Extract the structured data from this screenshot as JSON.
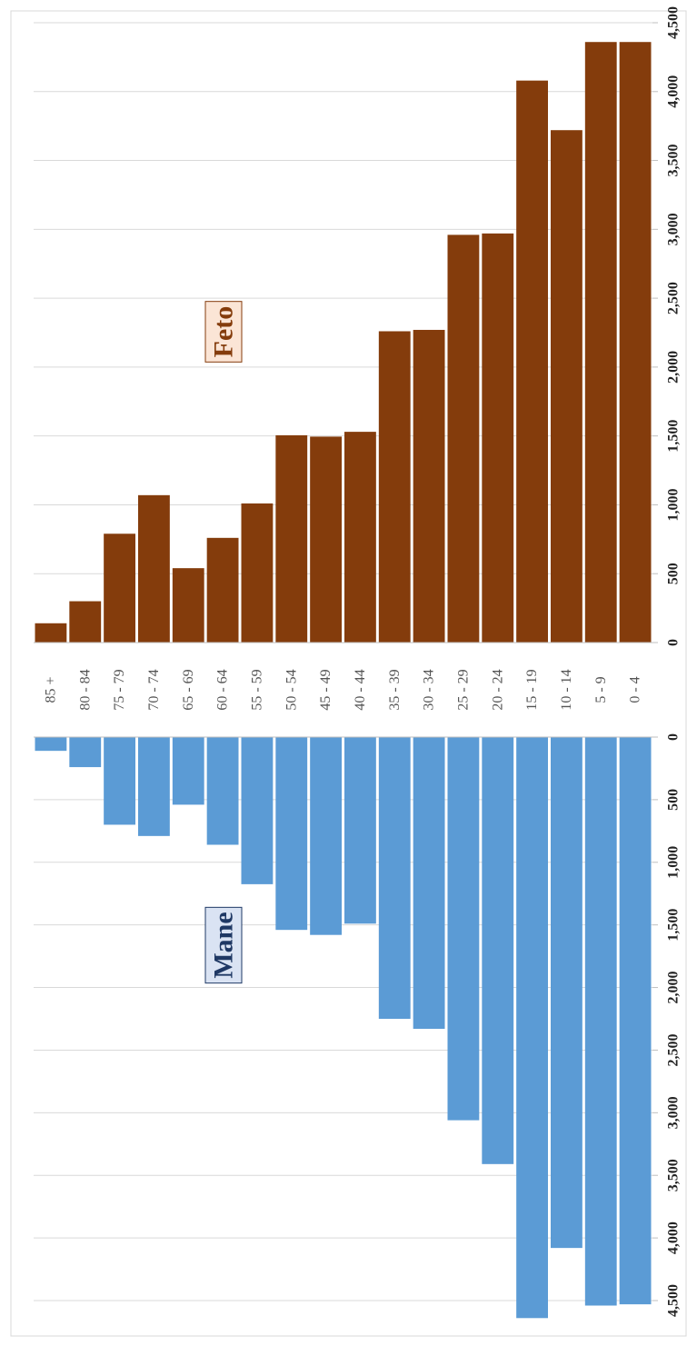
{
  "chart_data": {
    "type": "bar",
    "categories": [
      "85 +",
      "80 - 84",
      "75 - 79",
      "70 - 74",
      "65 - 69",
      "60 - 64",
      "55 - 59",
      "50 - 54",
      "45 - 49",
      "40 - 44",
      "35 - 39",
      "30 - 34",
      "25 - 29",
      "20 - 24",
      "15 - 19",
      "10 - 14",
      "5 - 9",
      "0 - 4"
    ],
    "series": [
      {
        "name": "Feto",
        "color": "#843c0c",
        "values": [
          140,
          300,
          790,
          1070,
          540,
          760,
          1010,
          1505,
          1495,
          1530,
          2260,
          2270,
          2960,
          2970,
          4080,
          3720,
          4360,
          4360
        ],
        "tick_labels": [
          "0",
          "500",
          "1,000",
          "1,500",
          "2,000",
          "2,500",
          "3,000",
          "3,500",
          "4,000",
          "4,500"
        ],
        "ylim": [
          0,
          4500
        ],
        "label_fill": "#fbe5d6",
        "label_color": "#843c0c"
      },
      {
        "name": "Mane",
        "color": "#5b9bd5",
        "values": [
          110,
          240,
          700,
          790,
          540,
          860,
          1175,
          1540,
          1580,
          1490,
          2250,
          2330,
          3060,
          3410,
          4640,
          4080,
          4540,
          4530
        ],
        "tick_labels": [
          "0",
          "500",
          "1,000",
          "1,500",
          "2,000",
          "2,500",
          "3,000",
          "3,500",
          "4,000",
          "4,500"
        ],
        "ylim": [
          0,
          4500
        ],
        "label_fill": "#dae3f3",
        "label_color": "#1f3864"
      }
    ],
    "grid": true
  }
}
